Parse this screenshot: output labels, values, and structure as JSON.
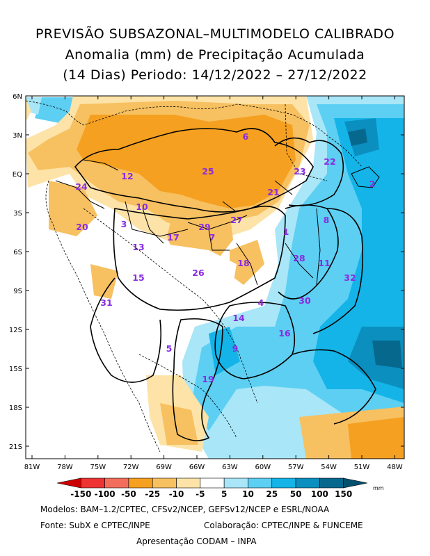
{
  "title": {
    "line1": "PREVISÃO SUBSAZONAL–MULTIMODELO CALIBRADO",
    "line2": "Anomalia (mm) de Precipitação Acumulada",
    "line3": "(14 Dias) Periodo: 14/12/2022 – 27/12/2022"
  },
  "axes": {
    "lat_labels": [
      "6N",
      "3N",
      "EQ",
      "3S",
      "6S",
      "9S",
      "12S",
      "15S",
      "18S",
      "21S"
    ],
    "lon_labels": [
      "81W",
      "78W",
      "75W",
      "72W",
      "69W",
      "66W",
      "63W",
      "60W",
      "57W",
      "54W",
      "51W",
      "48W"
    ]
  },
  "colorbar": {
    "labels": [
      "-150",
      "-100",
      "-50",
      "-25",
      "-10",
      "-5",
      "5",
      "10",
      "25",
      "50",
      "100",
      "150"
    ],
    "colors": [
      "#cc0000",
      "#ee3333",
      "#f26d5b",
      "#f5a020",
      "#f7c060",
      "#fde3a8",
      "#ffffff",
      "#a8e6f8",
      "#5ccff2",
      "#14b4e8",
      "#0a8fbf",
      "#07688e",
      "#05506e"
    ],
    "unit": "mm"
  },
  "regions": [
    {
      "id": "1"
    },
    {
      "id": "2"
    },
    {
      "id": "3"
    },
    {
      "id": "4"
    },
    {
      "id": "5"
    },
    {
      "id": "6"
    },
    {
      "id": "7"
    },
    {
      "id": "8"
    },
    {
      "id": "9"
    },
    {
      "id": "10"
    },
    {
      "id": "11"
    },
    {
      "id": "12"
    },
    {
      "id": "13"
    },
    {
      "id": "14"
    },
    {
      "id": "15"
    },
    {
      "id": "16"
    },
    {
      "id": "17"
    },
    {
      "id": "18"
    },
    {
      "id": "19"
    },
    {
      "id": "20"
    },
    {
      "id": "21"
    },
    {
      "id": "22"
    },
    {
      "id": "23"
    },
    {
      "id": "24"
    },
    {
      "id": "25"
    },
    {
      "id": "26"
    },
    {
      "id": "27"
    },
    {
      "id": "28"
    },
    {
      "id": "29"
    },
    {
      "id": "30"
    },
    {
      "id": "31"
    },
    {
      "id": "32"
    }
  ],
  "footer": {
    "models": "Modelos: BAM–1.2/CPTEC, CFSv2/NCEP, GEFSv12/NCEP e ESRL/NOAA",
    "source": "Fonte: SubX e CPTEC/INPE",
    "collab": "Colaboração: CPTEC/INPE & FUNCEME",
    "presentation": "Apresentação CODAM – INPA"
  }
}
